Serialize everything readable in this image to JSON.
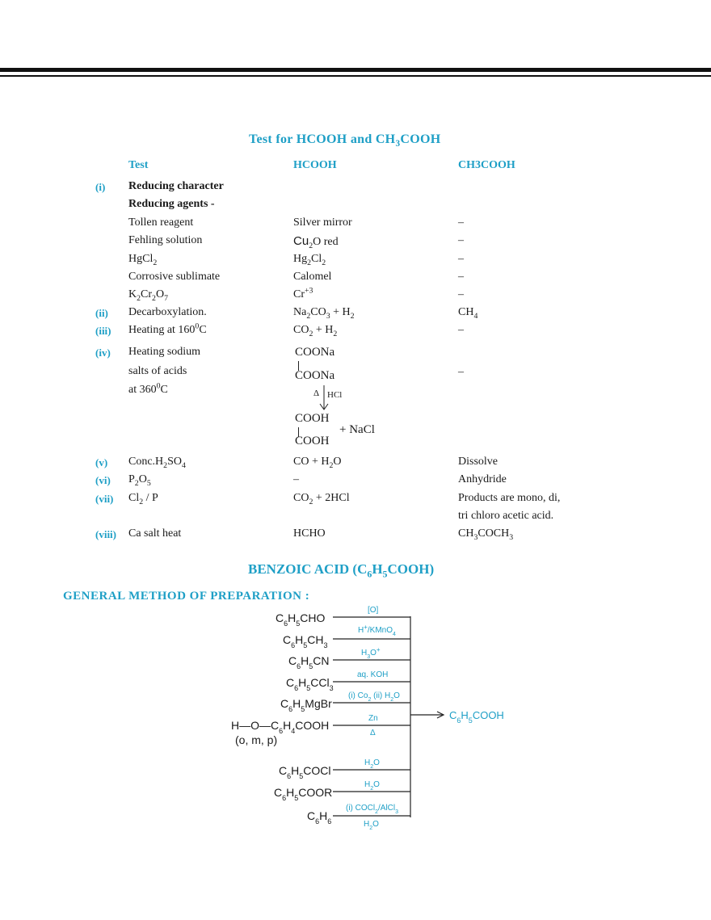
{
  "section_title": {
    "main": "Test  for  HCOOH  and  CH",
    "sub": "3",
    "tail": "COOH"
  },
  "headers": {
    "test": "Test",
    "hcooh": "HCOOH",
    "ch3cooh": "CH3COOH"
  },
  "rows": {
    "r1": {
      "num": "(i)",
      "test": "Reducing character"
    },
    "r2": {
      "test": "Reducing agents -"
    },
    "r3": {
      "test": "Tollen reagent",
      "hcooh": "Silver mirror",
      "ch3cooh": "–"
    },
    "r4": {
      "test": "Fehling solution",
      "hcooh_a": "Cu",
      "hcooh_sub": "2",
      "hcooh_b": "O red",
      "ch3cooh": "–"
    },
    "r5": {
      "test_a": "HgCl",
      "test_sub": "2",
      "hcooh_a": "Hg",
      "hcooh_sub1": "2",
      "hcooh_b": "Cl",
      "hcooh_sub2": "2",
      "ch3cooh": "–"
    },
    "r6": {
      "test": "Corrosive sublimate",
      "hcooh": "Calomel",
      "ch3cooh": "–"
    },
    "r7": {
      "test_a": "K",
      "test_sub1": "2",
      "test_b": "Cr",
      "test_sub2": "2",
      "test_c": "O",
      "test_sub3": "7",
      "hcooh_a": "Cr",
      "hcooh_sup": "+3",
      "ch3cooh": "–"
    },
    "r8": {
      "num": "(ii)",
      "test": "Decarboxylation.",
      "hcooh_a": "Na",
      "hcooh_sub1": "2",
      "hcooh_b": "CO",
      "hcooh_sub2": "3",
      "hcooh_c": " + H",
      "hcooh_sub3": "2",
      "ch3cooh_a": "CH",
      "ch3cooh_sub": "4"
    },
    "r9": {
      "num": "(iii)",
      "test_a": "Heating at 160",
      "test_sup": "0",
      "test_b": "C",
      "hcooh_a": "CO",
      "hcooh_sub1": "2",
      "hcooh_b": " + H",
      "hcooh_sub2": "2",
      "ch3cooh": "–"
    },
    "r10": {
      "num": "(iv)",
      "test_l1": "Heating sodium",
      "test_l2": "salts of acids",
      "test_l3a": "at 360",
      "test_l3sup": "0",
      "test_l3b": "C",
      "ch3cooh": "–",
      "scheme": {
        "top1": "COONa",
        "top2": "COONa",
        "delta": "Δ",
        "reagent": "HCl",
        "bot1": "COOH",
        "bot2": "COOH",
        "plus": "+ NaCl"
      }
    },
    "r11": {
      "num": "(v)",
      "test_a": "Conc.H",
      "test_sub1": "2",
      "test_b": "SO",
      "test_sub2": "4",
      "hcooh_a": "CO + H",
      "hcooh_sub": "2",
      "hcooh_b": "O",
      "ch3cooh": "Dissolve"
    },
    "r12": {
      "num": "(vi)",
      "test_a": "P",
      "test_sub1": "2",
      "test_b": "O",
      "test_sub2": "5",
      "hcooh": "–",
      "ch3cooh": "Anhydride"
    },
    "r13": {
      "num": "(vii)",
      "test_a": "Cl",
      "test_sub": "2",
      "test_b": " / P",
      "hcooh_a": "CO",
      "hcooh_sub": "2",
      "hcooh_b": " + 2HCl",
      "ch3cooh_l1": "Products are mono, di,",
      "ch3cooh_l2": "tri chloro acetic acid."
    },
    "r14": {
      "num": "(viii)",
      "test": "Ca salt heat",
      "hcooh": "HCHO",
      "ch3cooh_a": "CH",
      "ch3cooh_sub1": "3",
      "ch3cooh_b": "COCH",
      "ch3cooh_sub2": "3"
    }
  },
  "benzoic_title": {
    "a": "BENZOIC ACID (C",
    "s1": "6",
    "b": "H",
    "s2": "5",
    "c": "COOH)"
  },
  "prep_title": "GENERAL  METHOD  OF  PREPARATION  :",
  "scheme": {
    "product": "C6H5COOH",
    "reactants": [
      {
        "label": "C6H5CHO",
        "reagent": "[O]"
      },
      {
        "label": "C6H5CH3",
        "reagent": "H+/KMnO4"
      },
      {
        "label": "C6H5CN",
        "reagent": "H3O+"
      },
      {
        "label": "C6H5CCl3",
        "reagent": "aq. KOH"
      },
      {
        "label": "C6H5MgBr",
        "reagent": "(i) Co2 (ii) H2O"
      },
      {
        "label": "H—O—C6H4COOH",
        "label2": "(o, m, p)",
        "reagent": "Zn",
        "reagent2": "Δ"
      },
      {
        "label": "C6H5COCl",
        "reagent": "H2O"
      },
      {
        "label": "C6H5COOR",
        "reagent": "H2O"
      },
      {
        "label": "C6H6",
        "reagent": "(i) COCl2/AlCl3",
        "reagent2": "H2O"
      }
    ],
    "colors": {
      "reagent": "#1e9fc6",
      "text": "#1a1a1a"
    }
  }
}
